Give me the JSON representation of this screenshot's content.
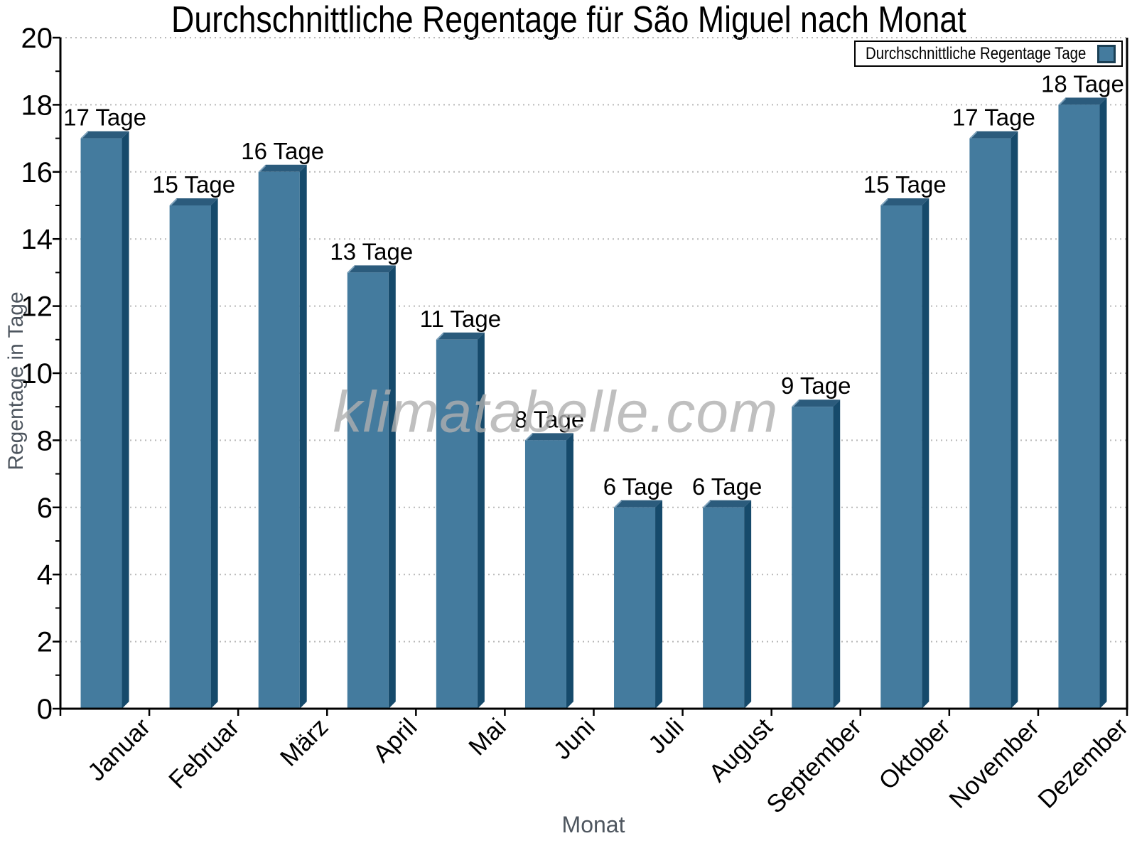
{
  "title": "Durchschnittliche Regentage für São Miguel nach Monat",
  "legend": {
    "label": "Durchschnittliche Regentage Tage"
  },
  "watermark": {
    "text": "klimatabelle.com"
  },
  "chart_data": {
    "type": "bar",
    "title": "Durchschnittliche Regentage für São Miguel nach Monat",
    "categories": [
      "Januar",
      "Februar",
      "März",
      "April",
      "Mai",
      "Juni",
      "Juli",
      "August",
      "September",
      "Oktober",
      "November",
      "Dezember"
    ],
    "values": [
      17,
      15,
      16,
      13,
      11,
      8,
      6,
      6,
      9,
      15,
      17,
      18
    ],
    "bar_labels": [
      "17 Tage",
      "15 Tage",
      "16 Tage",
      "13 Tage",
      "11 Tage",
      "8 Tage",
      "6 Tage",
      "6 Tage",
      "9 Tage",
      "15 Tage",
      "17 Tage",
      "18 Tage"
    ],
    "value_suffix": "Tage",
    "xlabel": "Monat",
    "ylabel": "Regentage in Tage",
    "ylim": [
      0,
      20
    ],
    "yticks": [
      0,
      2,
      4,
      6,
      8,
      10,
      12,
      14,
      16,
      18,
      20
    ],
    "grid": "horizontal-dotted",
    "legend_position": "top-right",
    "bar_style": "3d-extruded",
    "colors": {
      "bar_face": "#447B9E",
      "bar_top": "#2B5B7C",
      "bar_side": "#164A6B",
      "bar_bevel": "#7FA3BC",
      "grid": "#B9B9B9",
      "axis": "#000000",
      "tick_text": "#000000",
      "muted_text": "#4E565F",
      "watermark": "#AFAFAF"
    }
  }
}
